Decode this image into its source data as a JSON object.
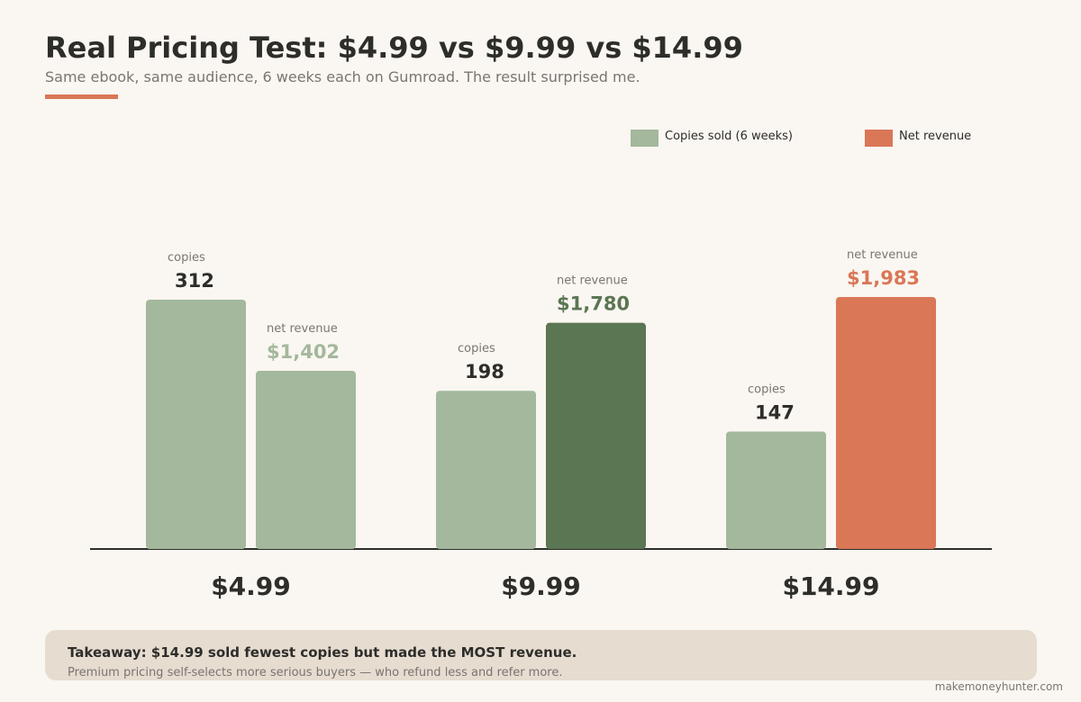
{
  "title": "Real Pricing Test: $4.99 vs $9.99 vs $14.99",
  "subtitle": "Same ebook, same audience, 6 weeks each on Gumroad. The result surprised me.",
  "colors": {
    "copies": "#a3b89c",
    "revenue_low": "#a3b89c",
    "revenue_mid": "#5b7652",
    "revenue_high": "#d97757",
    "accent": "#d97757",
    "text_dark": "#2d2d2a",
    "text_muted": "#7a7570",
    "background": "#faf6f1"
  },
  "legend": [
    {
      "label": "Copies sold (6 weeks)",
      "color": "#a3b89c"
    },
    {
      "label": "Net revenue",
      "color": "#d97757"
    }
  ],
  "chart_data": {
    "type": "bar",
    "categories": [
      "$4.99",
      "$9.99",
      "$14.99"
    ],
    "series": [
      {
        "name": "Copies sold (6 weeks)",
        "values": [
          312,
          198,
          147
        ],
        "color": "#a3b89c"
      },
      {
        "name": "Net revenue",
        "values": [
          1402,
          1780,
          1983
        ],
        "colors": [
          "#a3b89c",
          "#5b7652",
          "#d97757"
        ]
      }
    ],
    "value_labels": {
      "copies": [
        "312",
        "198",
        "147"
      ],
      "revenue": [
        "$1,402",
        "$1,780",
        "$1,983"
      ]
    },
    "bar_captions": {
      "copies": "copies",
      "revenue": "net revenue"
    },
    "copies_max": 312,
    "revenue_max": 1983,
    "grid": false,
    "legend_position": "top-right",
    "xlabel": "",
    "ylabel": ""
  },
  "callout": {
    "title": "Takeaway: $14.99 sold fewest copies but made the MOST revenue.",
    "body": "Premium pricing self-selects more serious buyers — who refund less and refer more."
  },
  "source": "makemoneyhunter.com"
}
